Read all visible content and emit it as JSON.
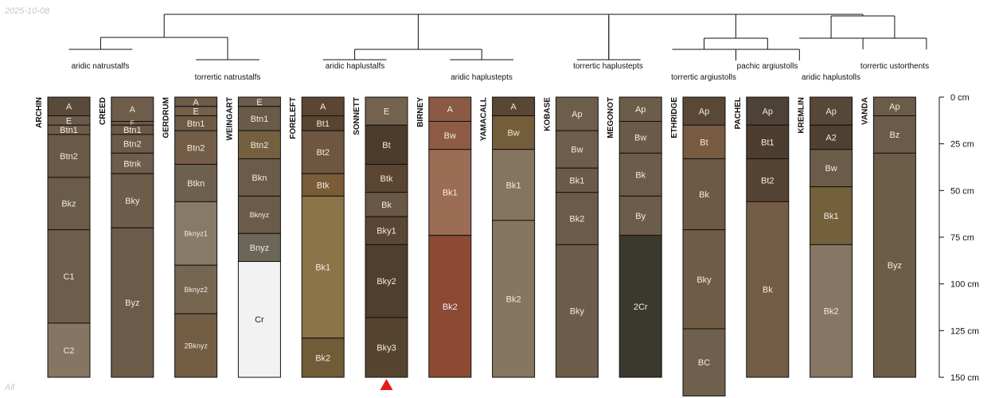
{
  "date_stamp": "2025-10-08",
  "footer_note": "All",
  "chart_data": {
    "type": "soil-profile-sketch",
    "depth_axis": {
      "min": 0,
      "max": 150,
      "unit": "cm",
      "ticks": [
        0,
        25,
        50,
        75,
        100,
        125,
        150
      ]
    },
    "profiles": [
      {
        "name": "ARCHIN",
        "horizons": [
          {
            "name": "A",
            "top": 0,
            "bottom": 10,
            "color": "#5a4a3a"
          },
          {
            "name": "E",
            "top": 10,
            "bottom": 15,
            "color": "#6b5a48"
          },
          {
            "name": "Btn1",
            "top": 15,
            "bottom": 20,
            "color": "#6e5c48"
          },
          {
            "name": "Btn2",
            "top": 20,
            "bottom": 43,
            "color": "#6a5a47"
          },
          {
            "name": "Bkz",
            "top": 43,
            "bottom": 71,
            "color": "#6b5c49"
          },
          {
            "name": "C1",
            "top": 71,
            "bottom": 121,
            "color": "#6d5e4b"
          },
          {
            "name": "C2",
            "top": 121,
            "bottom": 150,
            "color": "#857562"
          }
        ]
      },
      {
        "name": "CREED",
        "horizons": [
          {
            "name": "A",
            "top": 0,
            "bottom": 13,
            "color": "#6e5d4a"
          },
          {
            "name": "E",
            "top": 13,
            "bottom": 15,
            "color": "#6b5a47"
          },
          {
            "name": "Btn1",
            "top": 15,
            "bottom": 20,
            "color": "#6a5946"
          },
          {
            "name": "Btn2",
            "top": 20,
            "bottom": 30,
            "color": "#6c5b48"
          },
          {
            "name": "Btnk",
            "top": 30,
            "bottom": 41,
            "color": "#6e5d4a"
          },
          {
            "name": "Bky",
            "top": 41,
            "bottom": 70,
            "color": "#6c5c4a"
          },
          {
            "name": "Byz",
            "top": 70,
            "bottom": 150,
            "color": "#6b5b49"
          }
        ]
      },
      {
        "name": "GERDRUM",
        "horizons": [
          {
            "name": "A",
            "top": 0,
            "bottom": 5,
            "color": "#6e5a45"
          },
          {
            "name": "E",
            "top": 5,
            "bottom": 10,
            "color": "#735f4a"
          },
          {
            "name": "Btn1",
            "top": 10,
            "bottom": 18,
            "color": "#6f5a45"
          },
          {
            "name": "Btn2",
            "top": 18,
            "bottom": 36,
            "color": "#735d47"
          },
          {
            "name": "Btkn",
            "top": 36,
            "bottom": 56,
            "color": "#6e604f"
          },
          {
            "name": "Bknyz1",
            "top": 56,
            "bottom": 90,
            "color": "#877a66"
          },
          {
            "name": "Bknyz2",
            "top": 90,
            "bottom": 116,
            "color": "#76664f"
          },
          {
            "name": "2Bknyz",
            "top": 116,
            "bottom": 150,
            "color": "#735d44"
          }
        ]
      },
      {
        "name": "WEINGART",
        "horizons": [
          {
            "name": "E",
            "top": 0,
            "bottom": 5,
            "color": "#6b5c4a"
          },
          {
            "name": "Btn1",
            "top": 5,
            "bottom": 18,
            "color": "#6a5a48"
          },
          {
            "name": "Btn2",
            "top": 18,
            "bottom": 33,
            "color": "#74603f"
          },
          {
            "name": "Bkn",
            "top": 33,
            "bottom": 53,
            "color": "#6b5c4a"
          },
          {
            "name": "Bknyz",
            "top": 53,
            "bottom": 73,
            "color": "#6b5c4a"
          },
          {
            "name": "Bnyz",
            "top": 73,
            "bottom": 88,
            "color": "#6b6658"
          },
          {
            "name": "Cr",
            "top": 88,
            "bottom": 150,
            "color": "#f2f2f2"
          }
        ]
      },
      {
        "name": "FORELEFT",
        "horizons": [
          {
            "name": "A",
            "top": 0,
            "bottom": 10,
            "color": "#5c4633"
          },
          {
            "name": "Bt1",
            "top": 10,
            "bottom": 18,
            "color": "#5a4430"
          },
          {
            "name": "Bt2",
            "top": 18,
            "bottom": 41,
            "color": "#6e5640"
          },
          {
            "name": "Btk",
            "top": 41,
            "bottom": 53,
            "color": "#7a5c36"
          },
          {
            "name": "Bk1",
            "top": 53,
            "bottom": 129,
            "color": "#8c7449"
          },
          {
            "name": "Bk2",
            "top": 129,
            "bottom": 150,
            "color": "#715c38"
          }
        ]
      },
      {
        "name": "SONNETT",
        "horizons": [
          {
            "name": "E",
            "top": 0,
            "bottom": 15,
            "color": "#74624f"
          },
          {
            "name": "Bt",
            "top": 15,
            "bottom": 36,
            "color": "#4c3c2c"
          },
          {
            "name": "Btk",
            "top": 36,
            "bottom": 51,
            "color": "#5a4532"
          },
          {
            "name": "Bk",
            "top": 51,
            "bottom": 64,
            "color": "#6a5744"
          },
          {
            "name": "Bky1",
            "top": 64,
            "bottom": 79,
            "color": "#5a4634"
          },
          {
            "name": "Bky2",
            "top": 79,
            "bottom": 118,
            "color": "#503e2e"
          },
          {
            "name": "Bky3",
            "top": 118,
            "bottom": 150,
            "color": "#574430"
          }
        ]
      },
      {
        "name": "BIRNEY",
        "horizons": [
          {
            "name": "A",
            "top": 0,
            "bottom": 13,
            "color": "#8a5a44"
          },
          {
            "name": "Bw",
            "top": 13,
            "bottom": 28,
            "color": "#8e5c44"
          },
          {
            "name": "Bk1",
            "top": 28,
            "bottom": 74,
            "color": "#9b6d55"
          },
          {
            "name": "Bk2",
            "top": 74,
            "bottom": 150,
            "color": "#8c4a35"
          }
        ]
      },
      {
        "name": "YAMACALL",
        "horizons": [
          {
            "name": "A",
            "top": 0,
            "bottom": 10,
            "color": "#584733"
          },
          {
            "name": "Bw",
            "top": 10,
            "bottom": 28,
            "color": "#735d3a"
          },
          {
            "name": "Bk1",
            "top": 28,
            "bottom": 66,
            "color": "#857560"
          },
          {
            "name": "Bk2",
            "top": 66,
            "bottom": 150,
            "color": "#847660"
          }
        ]
      },
      {
        "name": "KOBASE",
        "horizons": [
          {
            "name": "Ap",
            "top": 0,
            "bottom": 18,
            "color": "#6d5e4b"
          },
          {
            "name": "Bw",
            "top": 18,
            "bottom": 38,
            "color": "#6d5e4b"
          },
          {
            "name": "Bk1",
            "top": 38,
            "bottom": 51,
            "color": "#6a5b48"
          },
          {
            "name": "Bk2",
            "top": 51,
            "bottom": 79,
            "color": "#6b5c49"
          },
          {
            "name": "Bky",
            "top": 79,
            "bottom": 150,
            "color": "#6c5d4a"
          }
        ]
      },
      {
        "name": "MEGONOT",
        "horizons": [
          {
            "name": "Ap",
            "top": 0,
            "bottom": 13,
            "color": "#6c5c4a"
          },
          {
            "name": "Bw",
            "top": 13,
            "bottom": 30,
            "color": "#6a5a48"
          },
          {
            "name": "Bk",
            "top": 30,
            "bottom": 53,
            "color": "#6c5c4a"
          },
          {
            "name": "By",
            "top": 53,
            "bottom": 74,
            "color": "#6c5c4a"
          },
          {
            "name": "2Cr",
            "top": 74,
            "bottom": 150,
            "color": "#3b3830"
          }
        ]
      },
      {
        "name": "ETHRIDGE",
        "horizons": [
          {
            "name": "Ap",
            "top": 0,
            "bottom": 15,
            "color": "#584835"
          },
          {
            "name": "Bt",
            "top": 15,
            "bottom": 33,
            "color": "#785b41"
          },
          {
            "name": "Bk",
            "top": 33,
            "bottom": 71,
            "color": "#6d5a45"
          },
          {
            "name": "Bky",
            "top": 71,
            "bottom": 124,
            "color": "#6f5c46"
          },
          {
            "name": "BC",
            "top": 124,
            "bottom": 160,
            "color": "#6e604d"
          }
        ]
      },
      {
        "name": "PACHEL",
        "horizons": [
          {
            "name": "Ap",
            "top": 0,
            "bottom": 15,
            "color": "#4e4135"
          },
          {
            "name": "Bt1",
            "top": 15,
            "bottom": 33,
            "color": "#4c3d30"
          },
          {
            "name": "Bt2",
            "top": 33,
            "bottom": 56,
            "color": "#554333"
          },
          {
            "name": "Bk",
            "top": 56,
            "bottom": 150,
            "color": "#735c45"
          }
        ]
      },
      {
        "name": "KREMLIN",
        "horizons": [
          {
            "name": "Ap",
            "top": 0,
            "bottom": 15,
            "color": "#574737"
          },
          {
            "name": "A2",
            "top": 15,
            "bottom": 28,
            "color": "#4f4132"
          },
          {
            "name": "Bw",
            "top": 28,
            "bottom": 48,
            "color": "#6b5c4a"
          },
          {
            "name": "Bk1",
            "top": 48,
            "bottom": 79,
            "color": "#74603b"
          },
          {
            "name": "Bk2",
            "top": 79,
            "bottom": 150,
            "color": "#857764"
          }
        ]
      },
      {
        "name": "VANDA",
        "horizons": [
          {
            "name": "Ap",
            "top": 0,
            "bottom": 10,
            "color": "#6b5c4a"
          },
          {
            "name": "Bz",
            "top": 10,
            "bottom": 30,
            "color": "#6b5c4a"
          },
          {
            "name": "Byz",
            "top": 30,
            "bottom": 150,
            "color": "#6c5c48"
          }
        ]
      }
    ],
    "groups": [
      {
        "label": "aridic natrustalfs",
        "profiles": [
          "ARCHIN",
          "CREED"
        ]
      },
      {
        "label": "torrertic natrustalfs",
        "profiles": [
          "GERDRUM",
          "WEINGART"
        ]
      },
      {
        "label": "aridic haplustalfs",
        "profiles": [
          "FORELEFT",
          "SONNETT"
        ]
      },
      {
        "label": "aridic haplustepts",
        "profiles": [
          "BIRNEY",
          "YAMACALL"
        ]
      },
      {
        "label": "torrertic haplustepts",
        "profiles": [
          "KOBASE",
          "MEGONOT"
        ]
      },
      {
        "label": "torrertic argiustolls",
        "profiles": [
          "ETHRIDGE"
        ]
      },
      {
        "label": "pachic argiustolls",
        "profiles": [
          "PACHEL"
        ]
      },
      {
        "label": "aridic haplustolls",
        "profiles": [
          "KREMLIN"
        ]
      },
      {
        "label": "torrertic ustorthents",
        "profiles": [
          "VANDA"
        ]
      }
    ],
    "highlighted_profile": "SONNETT"
  }
}
